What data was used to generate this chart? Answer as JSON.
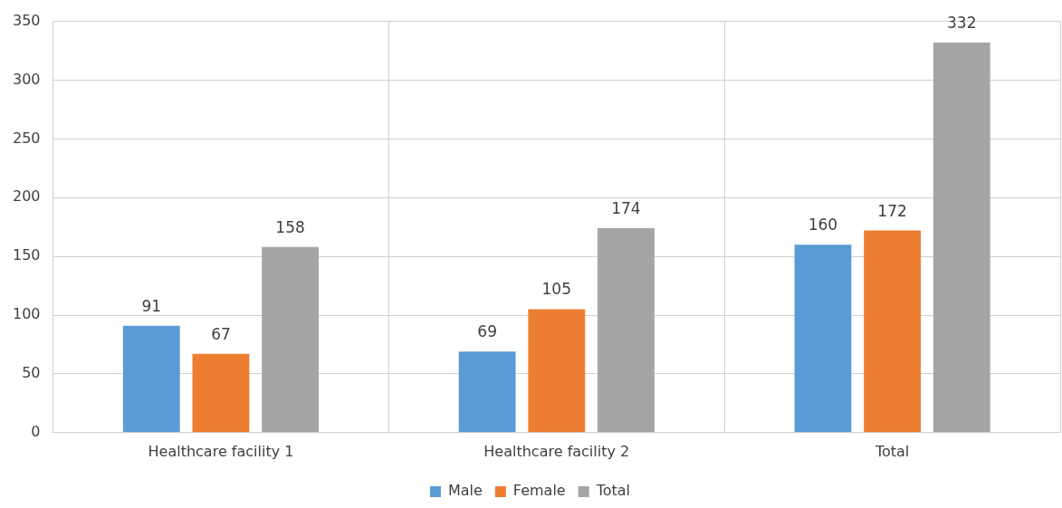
{
  "chart_data": {
    "type": "bar",
    "categories": [
      "Healthcare facility 1",
      "Healthcare facility 2",
      "Total"
    ],
    "series": [
      {
        "name": "Male",
        "color": "#5b9bd5",
        "values": [
          91,
          69,
          160
        ]
      },
      {
        "name": "Female",
        "color": "#ed7d31",
        "values": [
          67,
          105,
          172
        ]
      },
      {
        "name": "Total",
        "color": "#a5a5a5",
        "values": [
          158,
          174,
          332
        ]
      }
    ],
    "ylim": [
      0,
      350
    ],
    "yticks": [
      0,
      50,
      100,
      150,
      200,
      250,
      300,
      350
    ],
    "grid": true,
    "legend": "bottom",
    "data_labels": true
  }
}
